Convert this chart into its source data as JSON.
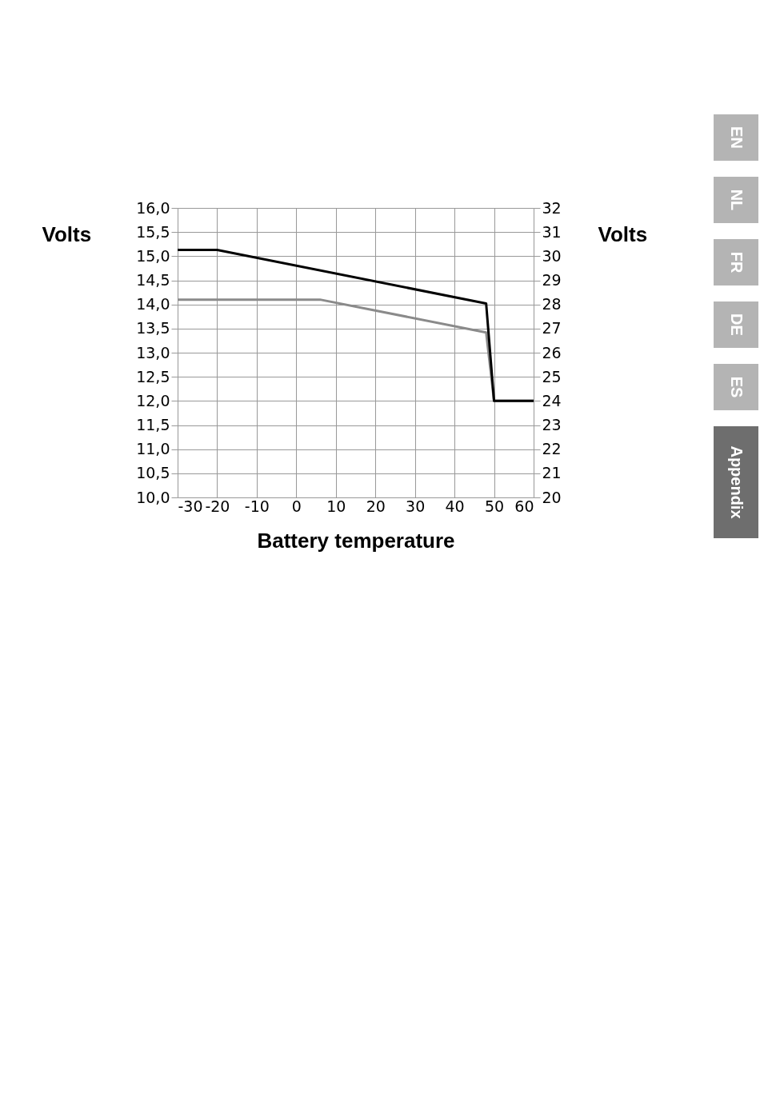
{
  "chart_data": {
    "type": "line",
    "xlabel": "Battery temperature",
    "ylabel": "Volts",
    "y2label": "Volts",
    "series": [
      {
        "color": "#8a8a8a",
        "x": [
          -30,
          6,
          48,
          50,
          60
        ],
        "values": [
          14.1,
          14.1,
          13.42,
          12.0,
          12.0
        ]
      },
      {
        "color": "#000000",
        "x": [
          -30,
          -20,
          48,
          50,
          60
        ],
        "values": [
          15.13,
          15.13,
          14.02,
          12.0,
          12.0
        ]
      }
    ],
    "xlim": [
      -30,
      60
    ],
    "xticks": [
      -30,
      -20,
      -10,
      0,
      10,
      20,
      30,
      40,
      50,
      60
    ],
    "ylim": [
      10,
      16
    ],
    "yticks": [
      {
        "value": 10,
        "label": "10,0"
      },
      {
        "value": 10.5,
        "label": "10,5"
      },
      {
        "value": 11,
        "label": "11,0"
      },
      {
        "value": 11.5,
        "label": "11,5"
      },
      {
        "value": 12,
        "label": "12,0"
      },
      {
        "value": 12.5,
        "label": "12,5"
      },
      {
        "value": 13,
        "label": "13,0"
      },
      {
        "value": 13.5,
        "label": "13,5"
      },
      {
        "value": 14,
        "label": "14,0"
      },
      {
        "value": 14.5,
        "label": "14,5"
      },
      {
        "value": 15,
        "label": "15,0"
      },
      {
        "value": 15.5,
        "label": "15,5"
      },
      {
        "value": 16,
        "label": "16,0"
      }
    ],
    "y2lim": [
      20,
      32
    ],
    "y2ticks": [
      20,
      21,
      22,
      23,
      24,
      25,
      26,
      27,
      28,
      29,
      30,
      31,
      32
    ],
    "grid": true,
    "marker": "none",
    "line_style": "solid",
    "annotations": [
      "EN",
      "NL",
      "FR",
      "DE",
      "ES",
      "Appendix"
    ]
  }
}
